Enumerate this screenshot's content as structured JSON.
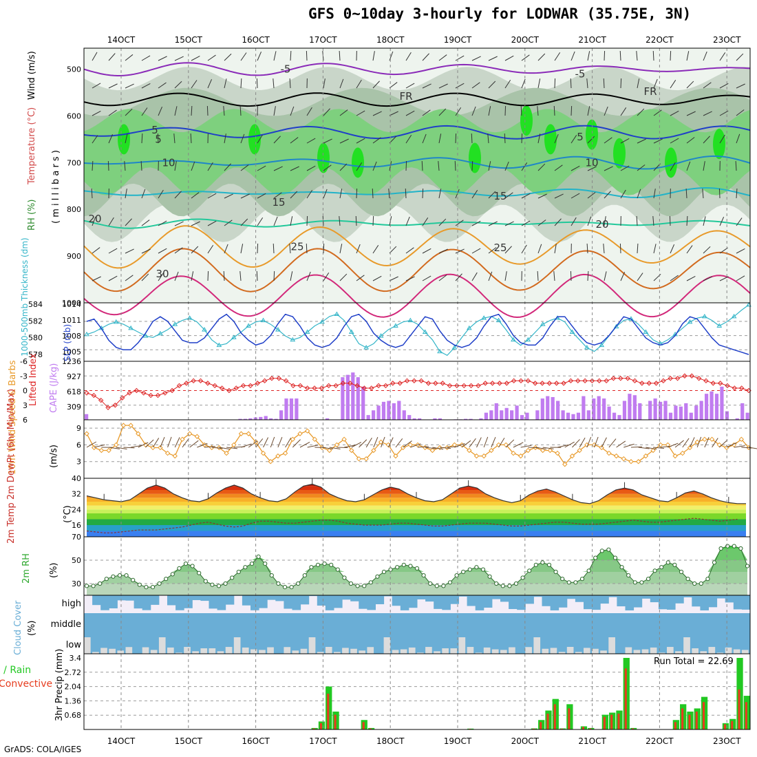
{
  "title": "GFS 0~10day 3-hourly for LODWAR (35.75E, 3N)",
  "credit": "GrADS: COLA/IGES",
  "x_axis": {
    "ticks": [
      "14OCT",
      "15OCT",
      "16OCT",
      "17OCT",
      "18OCT",
      "19OCT",
      "20OCT",
      "21OCT",
      "22OCT",
      "23OCT"
    ]
  },
  "panels": {
    "upper_air": {
      "left_labels": [
        "RH (%)",
        "Temperature (°C)",
        "Wind (m/s)"
      ],
      "axis_unit": "( m i l l i b a r s )",
      "yticks": [
        "500",
        "600",
        "700",
        "800",
        "900",
        "1000"
      ],
      "contour_labels": [
        "5",
        "FR",
        "5",
        "10",
        "15",
        "20",
        "25",
        "30",
        "-5",
        "FR",
        "5",
        "10",
        "15",
        "20",
        "25",
        "FR",
        "-5"
      ]
    },
    "slp": {
      "left_label": "1000-500mb Thickness (dm)",
      "right_label": "SLP (mb)",
      "thickness_ticks": [
        "584",
        "582",
        "580",
        "578"
      ],
      "slp_ticks": [
        "1014",
        "1011",
        "1008",
        "1005"
      ]
    },
    "cape": {
      "left_label": "Lifted Index",
      "right_label": "CAPE (J/kg)",
      "li_ticks": [
        "-6",
        "-3",
        "0",
        "3",
        "6"
      ],
      "cape_ticks": [
        "1236",
        "927",
        "618",
        "309"
      ]
    },
    "wind10m": {
      "left_label": "10m Wind Speed & Barbs",
      "unit": "(m/s)",
      "yticks": [
        "9",
        "6",
        "3"
      ]
    },
    "temp2m": {
      "left_label": "2m Temp 2m DewPt (6hr Min/Max)",
      "unit": "(°C)",
      "yticks": [
        "40",
        "32",
        "24",
        "16"
      ]
    },
    "rh2m": {
      "left_label": "2m RH",
      "unit": "(%)",
      "yticks": [
        "70",
        "50",
        "30"
      ]
    },
    "cloud": {
      "left_label": "Cloud Cover",
      "unit": "(%)",
      "levels": [
        "high",
        "middle",
        "low"
      ]
    },
    "precip": {
      "left_label_total": "Total / Rain",
      "left_label_conv": "Convective",
      "unit": "3hr Precip (mm)",
      "yticks": [
        "3.4",
        "2.72",
        "2.04",
        "1.36",
        "0.68"
      ],
      "run_total": "Run Total = 22.69"
    }
  },
  "colors": {
    "thickness": "#33b5c8",
    "slp": "#1f3fc8",
    "lifted_index": "#dd2222",
    "cape": "#c07cf0",
    "wind_speed": "#e89a2a",
    "barbs": "#6b4a2e",
    "rh_fill": "#5cc85c",
    "cloud": "#6aaed6",
    "cloud_bg": "#f3eef8",
    "precip_total": "#22c822",
    "precip_conv": "#e63c1e"
  },
  "chart_data": [
    {
      "type": "line",
      "name": "1000-500mb Thickness (dm) / SLP (mb)",
      "series": [
        {
          "name": "SLP (mb)",
          "values": [
            1011,
            1011.5,
            1009.5,
            1007,
            1005.5,
            1005,
            1005,
            1006.5,
            1008.5,
            1011,
            1012,
            1011,
            1009,
            1007,
            1006.5,
            1006.5,
            1007.5,
            1009.5,
            1011.5,
            1012.5,
            1011,
            1008.5,
            1007,
            1006,
            1006.5,
            1008,
            1010.5,
            1012.5,
            1012,
            1010,
            1007.5,
            1006,
            1005.5,
            1006,
            1007.5,
            1010,
            1012,
            1012.5,
            1011,
            1008.5,
            1007,
            1006,
            1005.5,
            1006,
            1008,
            1010,
            1012,
            1011.5,
            1009,
            1007,
            1006,
            1005.5,
            1006,
            1007.5,
            1010,
            1012,
            1012.5,
            1010.5,
            1008,
            1006.5,
            1006,
            1006,
            1007.5,
            1010,
            1012,
            1012,
            1010,
            1008,
            1006.5,
            1006,
            1006.5,
            1008,
            1010,
            1012,
            1011.5,
            1009.5,
            1007.5,
            1006.5,
            1006,
            1006.5,
            1008,
            1010.5,
            1012,
            1011.5,
            1009.5,
            1007.5,
            1006,
            1005.5,
            1005,
            1004.5,
            1004
          ]
        },
        {
          "name": "1000-500mb Thickness (dm)",
          "values": [
            580.2,
            580.5,
            581,
            581.5,
            581.8,
            581.5,
            581,
            580.5,
            580,
            579.8,
            580.3,
            580.8,
            581.5,
            582,
            582.3,
            581.8,
            580.8,
            579.5,
            578.8,
            579,
            579.8,
            580.5,
            581.3,
            581.8,
            582,
            581.5,
            580.8,
            580,
            579.5,
            579.8,
            580.5,
            581.3,
            581.8,
            582.5,
            582.8,
            582,
            580.5,
            579,
            578.5,
            579,
            580,
            580.8,
            581.3,
            581.8,
            582,
            581.5,
            580.5,
            579.5,
            578,
            577.5,
            578.5,
            579.8,
            581,
            581.8,
            582.3,
            582.5,
            582,
            580.8,
            579.5,
            578.8,
            579.5,
            580.5,
            581.5,
            582,
            582.3,
            581.8,
            580.5,
            579.5,
            578.5,
            578,
            578.8,
            580,
            581.2,
            582,
            582.2,
            581.5,
            580.5,
            579.5,
            579,
            579.5,
            580.2,
            581,
            581.8,
            582.3,
            582.5,
            582,
            581.3,
            581.8,
            582.5,
            583.3,
            584
          ]
        }
      ]
    },
    {
      "type": "bar",
      "name": "Lifted Index / CAPE (J/kg)",
      "series": [
        {
          "name": "CAPE (J/kg)",
          "values": [
            120,
            0,
            0,
            0,
            0,
            0,
            0,
            0,
            0,
            0,
            0,
            0,
            0,
            0,
            0,
            0,
            0,
            0,
            0,
            0,
            0,
            0,
            0,
            0,
            0,
            0,
            0,
            0,
            0,
            0,
            20,
            20,
            30,
            50,
            60,
            80,
            30,
            20,
            200,
            450,
            450,
            450,
            0,
            0,
            0,
            0,
            0,
            30,
            0,
            0,
            900,
            950,
            1000,
            900,
            700,
            100,
            200,
            300,
            380,
            400,
            350,
            400,
            200,
            100,
            30,
            30,
            0,
            0,
            30,
            30,
            0,
            0,
            10,
            10,
            20,
            20,
            0,
            30,
            150,
            200,
            350,
            200,
            250,
            200,
            300,
            100,
            150,
            0,
            200,
            450,
            500,
            480,
            400,
            200,
            150,
            120,
            150,
            500,
            200,
            450,
            500,
            450,
            280,
            150,
            100,
            400,
            550,
            520,
            350,
            0,
            400,
            450,
            380,
            400,
            150,
            300,
            280,
            350,
            150,
            300,
            400,
            550,
            600,
            550,
            700,
            180,
            0,
            30,
            350,
            150
          ]
        },
        {
          "name": "Lifted Index",
          "values": [
            0.5,
            1,
            2,
            3.5,
            3,
            1.5,
            0.5,
            0,
            0.5,
            1,
            1,
            0.5,
            0,
            -1,
            -1.5,
            -2,
            -2,
            -1.5,
            -1,
            -0.5,
            0,
            -0.5,
            -1,
            -1,
            -1.5,
            -2,
            -2.5,
            -2.5,
            -2,
            -1,
            -1,
            -0.5,
            -0.5,
            -0.5,
            -1,
            -1,
            -1.5,
            -1.5,
            -1,
            -0.5,
            -0.5,
            -1,
            -1,
            -1.5,
            -1.5,
            -2,
            -2,
            -2,
            -1.5,
            -1.5,
            -1.5,
            -1,
            -1,
            -1,
            -1,
            -1,
            -1.5,
            -1.5,
            -1.5,
            -1.5,
            -2,
            -2,
            -2,
            -1.5,
            -1.5,
            -1.5,
            -1.5,
            -1.5,
            -2,
            -2,
            -2,
            -2,
            -2,
            -2,
            -2.5,
            -2.5,
            -2.5,
            -2,
            -1.5,
            -1.5,
            -1.5,
            -2,
            -2.5,
            -2.5,
            -3,
            -3,
            -2.5,
            -2,
            -1.5,
            -1.5,
            -1,
            -0.5,
            -0.5,
            0
          ]
        }
      ]
    },
    {
      "type": "line",
      "name": "10m Wind Speed (m/s)",
      "series": [
        {
          "name": "Speed",
          "values": [
            8,
            5.5,
            5,
            5,
            6,
            9.5,
            9.5,
            8,
            6,
            5.5,
            5.5,
            4.5,
            4,
            7,
            8,
            7.5,
            6,
            5.5,
            5.5,
            4.5,
            6,
            8,
            8,
            6.5,
            4.5,
            3,
            4,
            4.5,
            7,
            8,
            8.5,
            7,
            5.5,
            5,
            6,
            7,
            5,
            3.5,
            3.5,
            5,
            6.5,
            6,
            4,
            5.5,
            6,
            6,
            5.5,
            5,
            5.5,
            5.5,
            6,
            6,
            5,
            4,
            4,
            5,
            6,
            6,
            4.5,
            4,
            5,
            5.5,
            5,
            5,
            4.5,
            2.5,
            4,
            5,
            6,
            6,
            5.5,
            4.5,
            4,
            3.5,
            3,
            3,
            4,
            5,
            6,
            6,
            4,
            4.5,
            5.5,
            6.5,
            7,
            7,
            6,
            5.5,
            6,
            7,
            5.5
          ]
        }
      ]
    },
    {
      "type": "area",
      "name": "2m Temp / 2m DewPt (°C)",
      "series": [
        {
          "name": "2m Temp",
          "values": [
            31,
            30,
            29,
            28.5,
            28,
            29,
            32,
            35,
            36.5,
            35,
            32,
            30,
            28.5,
            28,
            29.5,
            32.5,
            35,
            36.5,
            35,
            32,
            30,
            28.5,
            28,
            29.5,
            33,
            36,
            37,
            35.5,
            32,
            30,
            28.5,
            28,
            29,
            31.5,
            34,
            35.5,
            34.5,
            32,
            30,
            28.5,
            28,
            29,
            32,
            35,
            36,
            35,
            32,
            30,
            28.5,
            27.5,
            28.5,
            31.5,
            33.5,
            34.5,
            33,
            31,
            29,
            27.5,
            27,
            28.5,
            31.5,
            34,
            35,
            34,
            31.5,
            30,
            28.5,
            28,
            30,
            32.5,
            33.5,
            32,
            30,
            28.5,
            27.5,
            27,
            27
          ]
        },
        {
          "name": "2m DewPt",
          "values": [
            13,
            12.5,
            12,
            12,
            12.5,
            13,
            13.5,
            13.5,
            13.5,
            14,
            14.5,
            15,
            16,
            17,
            17.5,
            16.5,
            15.5,
            15,
            15.5,
            17,
            18,
            18,
            17.5,
            17,
            17,
            17.5,
            18,
            18.5,
            18.5,
            18,
            17,
            16.5,
            16,
            16,
            16,
            16.5,
            17,
            17,
            16.5,
            16,
            15.5,
            15.5,
            16,
            16.5,
            17,
            17,
            17,
            16.5,
            16,
            15.5,
            15.5,
            16,
            16.5,
            17,
            17.5,
            17.5,
            17,
            16.5,
            16.5,
            16.5,
            17,
            17.5,
            18,
            18.5,
            18,
            17.5,
            17.5,
            18,
            18.5,
            19,
            19.5,
            19,
            18.5,
            18,
            18.5,
            19
          ]
        }
      ]
    },
    {
      "type": "area",
      "name": "2m RH (%)",
      "series": [
        {
          "name": "2m RH",
          "values": [
            28,
            28,
            30,
            34,
            36,
            37,
            37,
            33,
            29,
            27,
            27,
            30,
            34,
            38,
            43,
            47,
            45,
            39,
            32,
            29,
            28,
            30,
            35,
            40,
            44,
            47,
            53,
            47,
            37,
            30,
            27,
            27,
            30,
            37,
            44,
            46,
            47,
            46,
            42,
            35,
            30,
            28,
            28,
            31,
            36,
            40,
            42,
            44,
            46,
            45,
            43,
            37,
            30,
            28,
            28,
            31,
            37,
            40,
            42,
            44,
            42,
            36,
            30,
            28,
            28,
            30,
            35,
            41,
            46,
            48,
            46,
            40,
            34,
            31,
            31,
            34,
            41,
            52,
            58,
            59,
            52,
            44,
            37,
            31,
            31,
            34,
            41,
            44,
            48,
            46,
            40,
            34,
            30,
            30,
            34,
            48,
            60,
            62,
            62,
            60,
            45
          ]
        }
      ]
    },
    {
      "type": "bar",
      "name": "3hr Precip (mm)",
      "series": [
        {
          "name": "Total",
          "values": [
            0,
            0,
            0,
            0,
            0,
            0,
            0,
            0,
            0,
            0,
            0,
            0,
            0,
            0,
            0,
            0,
            0,
            0,
            0,
            0,
            0,
            0,
            0,
            0,
            0,
            0,
            0,
            0,
            0,
            0,
            0,
            0,
            0.07,
            0.38,
            2.04,
            0.85,
            0,
            0,
            0,
            0.45,
            0.07,
            0,
            0,
            0,
            0,
            0,
            0,
            0,
            0,
            0,
            0,
            0,
            0,
            0,
            0.04,
            0,
            0,
            0,
            0,
            0,
            0,
            0,
            0,
            0.05,
            0.45,
            0.9,
            1.45,
            0.05,
            1.2,
            0,
            0.15,
            0.07,
            0,
            0.7,
            0.8,
            0.9,
            3.4,
            0.07,
            0,
            0,
            0,
            0,
            0,
            0.45,
            1.2,
            0.85,
            1.0,
            1.55,
            0,
            0,
            0.3,
            0.5,
            3.4,
            1.6
          ]
        },
        {
          "name": "Convective",
          "values": [
            0,
            0,
            0,
            0,
            0,
            0,
            0,
            0,
            0,
            0,
            0,
            0,
            0,
            0,
            0,
            0,
            0,
            0,
            0,
            0,
            0,
            0,
            0,
            0,
            0,
            0,
            0,
            0,
            0,
            0,
            0,
            0,
            0.05,
            0.3,
            1.7,
            0.7,
            0,
            0,
            0,
            0.35,
            0.05,
            0,
            0,
            0,
            0,
            0,
            0,
            0,
            0,
            0,
            0,
            0,
            0,
            0,
            0.03,
            0,
            0,
            0,
            0,
            0,
            0,
            0,
            0,
            0.04,
            0.35,
            0.75,
            1.2,
            0.04,
            1.0,
            0,
            0.12,
            0.05,
            0,
            0.6,
            0.7,
            0.75,
            2.9,
            0.05,
            0,
            0,
            0,
            0,
            0,
            0.35,
            1.0,
            0.7,
            0.85,
            1.3,
            0,
            0,
            0.25,
            0.4,
            1.9,
            1.3
          ]
        }
      ]
    }
  ]
}
